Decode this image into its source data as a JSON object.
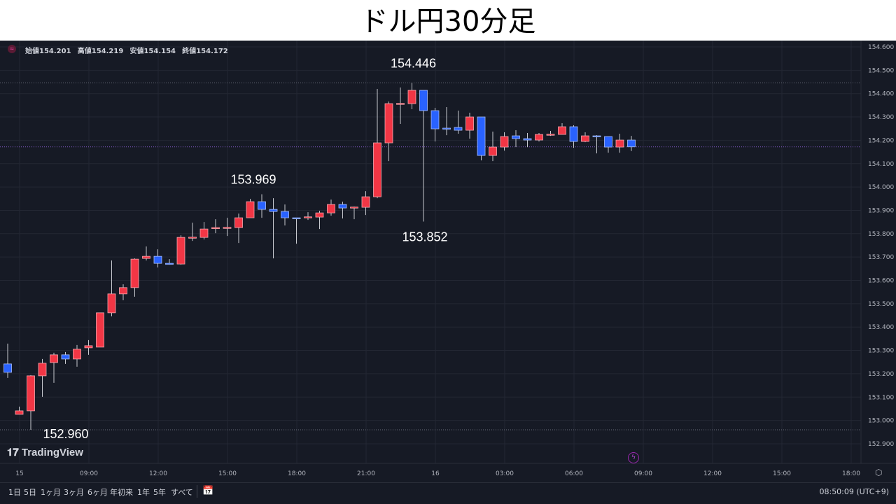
{
  "title": "ドル円30分足",
  "header": {
    "open_label": "始値",
    "open": "154.201",
    "high_label": "高値",
    "high": "154.219",
    "low_label": "安値",
    "low": "154.154",
    "close_label": "終値",
    "close": "154.172",
    "symbol_icon": "currency-icon"
  },
  "logo": "TradingView",
  "ranges": [
    "1日",
    "5日",
    "1ヶ月",
    "3ヶ月",
    "6ヶ月",
    "年初来",
    "1年",
    "5年",
    "すべて"
  ],
  "clock": "08:50:09 (UTC+9)",
  "colors": {
    "up": "#f23645",
    "down": "#2962ff",
    "background": "#161a25",
    "grid": "#232733",
    "current_line": "#7e57c2"
  },
  "chart_data": {
    "type": "candlestick",
    "title": "ドル円30分足",
    "ylim": [
      152.85,
      154.65
    ],
    "y_ticks": [
      "154.600",
      "154.500",
      "154.400",
      "154.300",
      "154.200",
      "154.100",
      "154.000",
      "153.900",
      "153.800",
      "153.700",
      "153.600",
      "153.500",
      "153.400",
      "153.300",
      "153.200",
      "153.100",
      "153.000",
      "152.900"
    ],
    "x_ticks": [
      "15",
      "09:00",
      "12:00",
      "15:00",
      "18:00",
      "21:00",
      "16",
      "03:00",
      "06:00",
      "09:00",
      "12:00",
      "15:00",
      "18:00"
    ],
    "grid": true,
    "current_price": 154.172,
    "reference_lines": [
      154.446,
      152.96
    ],
    "annotations": [
      {
        "text": "154.446",
        "price": 154.446,
        "candle": 35
      },
      {
        "text": "153.969",
        "price": 153.969,
        "candle": 22
      },
      {
        "text": "153.852",
        "price": 153.852,
        "candle": 36
      },
      {
        "text": "152.960",
        "price": 152.96,
        "candle": 2
      }
    ],
    "candles": [
      [
        153.242,
        153.329,
        153.182,
        153.206
      ],
      [
        153.026,
        153.059,
        153.026,
        153.041
      ],
      [
        153.041,
        153.194,
        152.96,
        153.191
      ],
      [
        153.191,
        153.263,
        153.101,
        153.245
      ],
      [
        153.248,
        153.29,
        153.161,
        153.281
      ],
      [
        153.281,
        153.293,
        153.242,
        153.263
      ],
      [
        153.263,
        153.323,
        153.23,
        153.305
      ],
      [
        153.311,
        153.344,
        153.281,
        153.32
      ],
      [
        153.314,
        153.461,
        153.314,
        153.461
      ],
      [
        153.461,
        153.685,
        153.446,
        153.542
      ],
      [
        153.542,
        153.583,
        153.515,
        153.569
      ],
      [
        153.569,
        153.694,
        153.53,
        153.691
      ],
      [
        153.694,
        153.745,
        153.685,
        153.703
      ],
      [
        153.703,
        153.733,
        153.655,
        153.673
      ],
      [
        153.673,
        153.691,
        153.667,
        153.67
      ],
      [
        153.67,
        153.793,
        153.667,
        153.784
      ],
      [
        153.784,
        153.847,
        153.769,
        153.785
      ],
      [
        153.784,
        153.85,
        153.775,
        153.82
      ],
      [
        153.826,
        153.862,
        153.802,
        153.826
      ],
      [
        153.826,
        153.868,
        153.79,
        153.827
      ],
      [
        153.826,
        153.886,
        153.76,
        153.868
      ],
      [
        153.868,
        153.949,
        153.868,
        153.937
      ],
      [
        153.937,
        153.969,
        153.868,
        153.904
      ],
      [
        153.904,
        153.952,
        153.694,
        153.895
      ],
      [
        153.895,
        153.925,
        153.835,
        153.868
      ],
      [
        153.868,
        153.868,
        153.757,
        153.866
      ],
      [
        153.871,
        153.892,
        153.859,
        153.872
      ],
      [
        153.871,
        153.898,
        153.82,
        153.889
      ],
      [
        153.889,
        153.946,
        153.877,
        153.925
      ],
      [
        153.925,
        153.937,
        153.865,
        153.91
      ],
      [
        153.913,
        153.916,
        153.862,
        153.914
      ],
      [
        153.913,
        153.982,
        153.88,
        153.958
      ],
      [
        153.958,
        154.42,
        153.952,
        154.189
      ],
      [
        154.189,
        154.366,
        154.111,
        154.357
      ],
      [
        154.357,
        154.426,
        154.27,
        154.358
      ],
      [
        154.357,
        154.446,
        154.333,
        154.414
      ],
      [
        154.414,
        154.414,
        153.852,
        154.327
      ],
      [
        154.327,
        154.339,
        154.195,
        154.249
      ],
      [
        154.252,
        154.342,
        154.222,
        154.249
      ],
      [
        154.255,
        154.327,
        154.228,
        154.243
      ],
      [
        154.243,
        154.318,
        154.207,
        154.3
      ],
      [
        154.3,
        154.3,
        154.114,
        154.135
      ],
      [
        154.135,
        154.237,
        154.111,
        154.171
      ],
      [
        154.171,
        154.234,
        154.156,
        154.216
      ],
      [
        154.219,
        154.243,
        154.171,
        154.207
      ],
      [
        154.207,
        154.231,
        154.171,
        154.201
      ],
      [
        154.201,
        154.231,
        154.195,
        154.225
      ],
      [
        154.225,
        154.24,
        154.219,
        154.226
      ],
      [
        154.225,
        154.273,
        154.225,
        154.258
      ],
      [
        154.258,
        154.264,
        154.168,
        154.195
      ],
      [
        154.195,
        154.234,
        154.192,
        154.219
      ],
      [
        154.219,
        154.222,
        154.144,
        154.216
      ],
      [
        154.216,
        154.216,
        154.147,
        154.171
      ],
      [
        154.171,
        154.228,
        154.147,
        154.201
      ],
      [
        154.201,
        154.219,
        154.154,
        154.172
      ]
    ]
  }
}
